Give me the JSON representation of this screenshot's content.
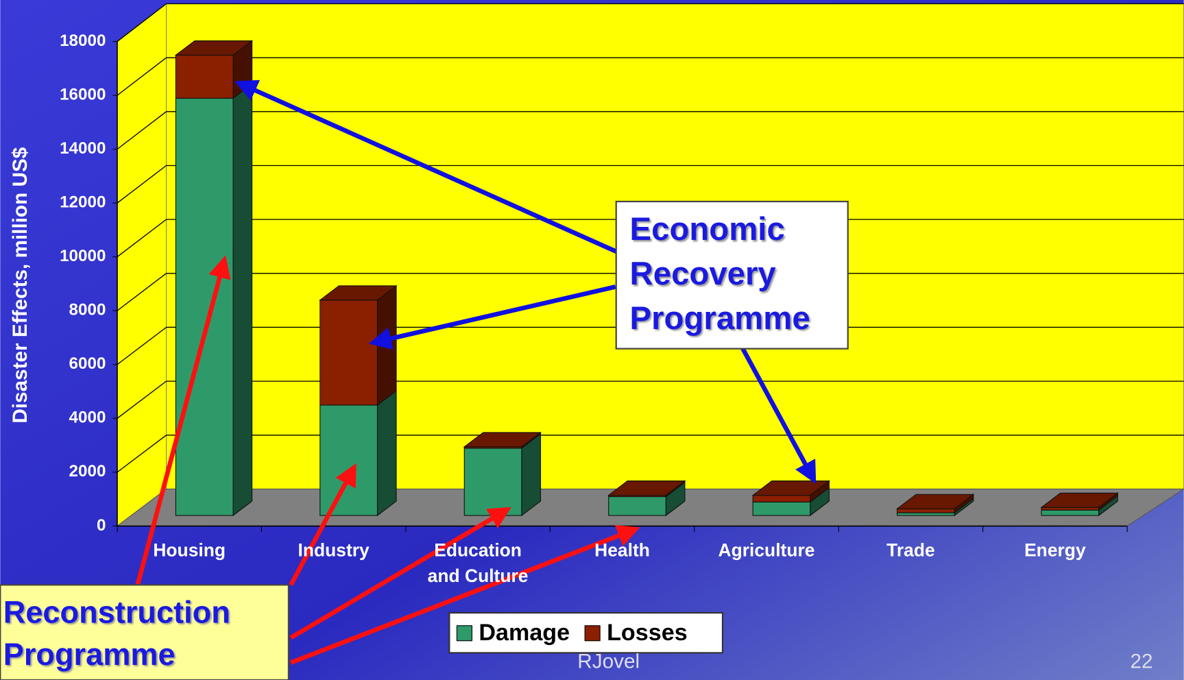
{
  "chart_data": {
    "type": "bar",
    "stacked": true,
    "y_label": "Disaster Effects, million US$",
    "categories": [
      "Housing",
      "Industry",
      "Education and Culture",
      "Health",
      "Agriculture",
      "Trade",
      "Energy"
    ],
    "series": [
      {
        "name": "Damage",
        "color": "#2e9a6a",
        "values": [
          15500,
          4100,
          2500,
          700,
          500,
          100,
          200
        ]
      },
      {
        "name": "Losses",
        "color": "#8b2000",
        "values": [
          1600,
          3900,
          50,
          50,
          250,
          150,
          100
        ]
      }
    ],
    "ylim": [
      0,
      18000
    ],
    "yticks": [
      0,
      2000,
      4000,
      6000,
      8000,
      10000,
      12000,
      14000,
      16000,
      18000
    ],
    "grid": true,
    "annotations": [
      "Economic Recovery Programme",
      "Reconstruction Programme"
    ]
  },
  "footer": {
    "author": "RJovel",
    "page": "22"
  }
}
